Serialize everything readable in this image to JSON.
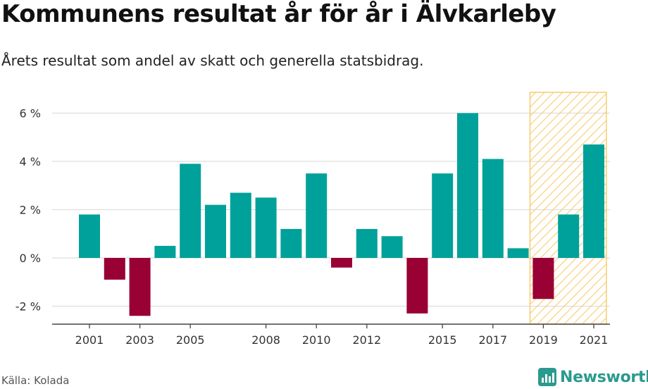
{
  "title": "Kommunens resultat år för år i Älvkarleby",
  "subtitle": "Årets resultat som andel av skatt och generella statsbidrag.",
  "source": "Källa: Kolada",
  "brand": {
    "name": "Newsworthy",
    "color": "#2b9a8e",
    "icon": "newsworthy-logo-icon"
  },
  "colors": {
    "positive": "#00a19a",
    "negative": "#990033",
    "highlight_fill": "#f8cc6e",
    "grid": "#dddddd",
    "axis": "#444444"
  },
  "chart_data": {
    "type": "bar",
    "title": "Kommunens resultat år för år i Älvkarleby",
    "subtitle": "Årets resultat som andel av skatt och generella statsbidrag.",
    "xlabel": "",
    "ylabel": "",
    "categories": [
      2001,
      2002,
      2003,
      2004,
      2005,
      2006,
      2007,
      2008,
      2009,
      2010,
      2011,
      2012,
      2013,
      2014,
      2015,
      2016,
      2017,
      2018,
      2019,
      2020,
      2021
    ],
    "values": [
      1.8,
      -0.9,
      -2.4,
      0.5,
      3.9,
      2.2,
      2.7,
      2.5,
      1.2,
      3.5,
      -0.4,
      1.2,
      0.9,
      -2.3,
      3.5,
      6.0,
      4.1,
      0.4,
      -1.7,
      1.8,
      4.7
    ],
    "x_tick_labels": [
      "2001",
      "2003",
      "2005",
      "2008",
      "2010",
      "2012",
      "2015",
      "2017",
      "2019",
      "2021"
    ],
    "y_ticks": [
      {
        "value": -2,
        "label": "-2 %"
      },
      {
        "value": 0,
        "label": "0 %"
      },
      {
        "value": 2,
        "label": "2 %"
      },
      {
        "value": 4,
        "label": "4 %"
      },
      {
        "value": 6,
        "label": "6 %"
      }
    ],
    "ylim": [
      -2.8,
      6.9
    ],
    "grid": true,
    "highlight": {
      "from": 2019,
      "to": 2021,
      "pattern": "diagonal-hatch"
    }
  }
}
